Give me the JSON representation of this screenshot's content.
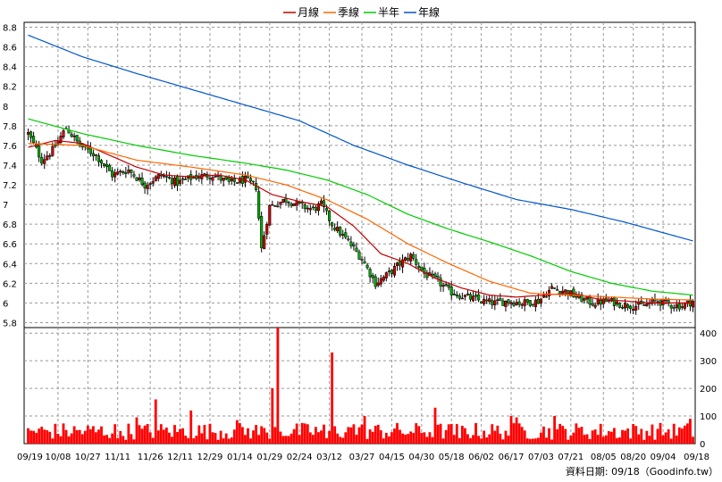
{
  "chart_data": {
    "type": "candlestick",
    "legend": [
      {
        "name": "月線",
        "color": "#c00000"
      },
      {
        "name": "季線",
        "color": "#ff6600"
      },
      {
        "name": "半年",
        "color": "#00cc00"
      },
      {
        "name": "年線",
        "color": "#0055cc"
      }
    ],
    "price_axis": {
      "ylim": [
        5.75,
        8.85
      ],
      "ticks": [
        "5.8",
        "6",
        "6.2",
        "6.4",
        "6.6",
        "6.8",
        "7",
        "7.2",
        "7.4",
        "7.6",
        "7.8",
        "8",
        "8.2",
        "8.4",
        "8.6",
        "8.8"
      ],
      "tick_values": [
        5.8,
        6.0,
        6.2,
        6.4,
        6.6,
        6.8,
        7.0,
        7.2,
        7.4,
        7.6,
        7.8,
        8.0,
        8.2,
        8.4,
        8.6,
        8.8
      ]
    },
    "volume_axis": {
      "ylim": [
        0,
        420
      ],
      "ticks": [
        "0",
        "100",
        "200",
        "300",
        "400"
      ],
      "tick_values": [
        0,
        100,
        200,
        300,
        400
      ]
    },
    "x_tick_labels": [
      "09/19",
      "10/08",
      "10/27",
      "11/11",
      "11/26",
      "12/11",
      "12/29",
      "01/14",
      "01/29",
      "02/24",
      "03/12",
      "03/27",
      "04/15",
      "04/30",
      "05/18",
      "06/02",
      "06/17",
      "07/03",
      "07/21",
      "08/05",
      "08/20",
      "09/04",
      "09/18"
    ],
    "num_bars": 246,
    "close_anchors": [
      [
        0,
        7.72
      ],
      [
        5,
        7.45
      ],
      [
        9,
        7.55
      ],
      [
        14,
        7.78
      ],
      [
        19,
        7.6
      ],
      [
        25,
        7.5
      ],
      [
        31,
        7.3
      ],
      [
        37,
        7.35
      ],
      [
        43,
        7.2
      ],
      [
        49,
        7.3
      ],
      [
        55,
        7.22
      ],
      [
        61,
        7.28
      ],
      [
        68,
        7.3
      ],
      [
        74,
        7.22
      ],
      [
        80,
        7.25
      ],
      [
        84,
        7.18
      ],
      [
        86,
        6.55
      ],
      [
        89,
        6.98
      ],
      [
        95,
        7.05
      ],
      [
        101,
        6.98
      ],
      [
        105,
        6.95
      ],
      [
        108,
        7.0
      ],
      [
        112,
        6.8
      ],
      [
        118,
        6.62
      ],
      [
        123,
        6.45
      ],
      [
        128,
        6.2
      ],
      [
        133,
        6.3
      ],
      [
        137,
        6.4
      ],
      [
        141,
        6.48
      ],
      [
        146,
        6.3
      ],
      [
        151,
        6.22
      ],
      [
        155,
        6.12
      ],
      [
        159,
        6.08
      ],
      [
        163,
        6.05
      ],
      [
        167,
        6.02
      ],
      [
        172,
        6.0
      ],
      [
        177,
        6.02
      ],
      [
        182,
        6.0
      ],
      [
        188,
        6.02
      ],
      [
        193,
        6.15
      ],
      [
        198,
        6.12
      ],
      [
        203,
        6.05
      ],
      [
        208,
        6.0
      ],
      [
        214,
        6.02
      ],
      [
        220,
        5.98
      ],
      [
        226,
        5.97
      ],
      [
        232,
        6.02
      ],
      [
        237,
        5.98
      ],
      [
        241,
        5.97
      ],
      [
        245,
        6.02
      ]
    ],
    "ma_month": [
      [
        0,
        7.58
      ],
      [
        10,
        7.65
      ],
      [
        20,
        7.62
      ],
      [
        30,
        7.5
      ],
      [
        40,
        7.38
      ],
      [
        50,
        7.3
      ],
      [
        60,
        7.28
      ],
      [
        70,
        7.3
      ],
      [
        80,
        7.25
      ],
      [
        90,
        7.1
      ],
      [
        100,
        7.03
      ],
      [
        110,
        6.98
      ],
      [
        120,
        6.78
      ],
      [
        130,
        6.5
      ],
      [
        140,
        6.4
      ],
      [
        150,
        6.25
      ],
      [
        160,
        6.15
      ],
      [
        170,
        6.08
      ],
      [
        180,
        6.06
      ],
      [
        190,
        6.08
      ],
      [
        200,
        6.1
      ],
      [
        210,
        6.04
      ],
      [
        220,
        6.02
      ],
      [
        230,
        6.0
      ],
      [
        245,
        6.0
      ]
    ],
    "ma_quarter": [
      [
        0,
        7.62
      ],
      [
        20,
        7.6
      ],
      [
        40,
        7.45
      ],
      [
        60,
        7.38
      ],
      [
        80,
        7.3
      ],
      [
        95,
        7.2
      ],
      [
        110,
        7.05
      ],
      [
        125,
        6.85
      ],
      [
        140,
        6.6
      ],
      [
        155,
        6.4
      ],
      [
        170,
        6.22
      ],
      [
        185,
        6.1
      ],
      [
        200,
        6.08
      ],
      [
        215,
        6.06
      ],
      [
        230,
        6.04
      ],
      [
        245,
        6.03
      ]
    ],
    "ma_half": [
      [
        0,
        7.87
      ],
      [
        20,
        7.72
      ],
      [
        40,
        7.6
      ],
      [
        60,
        7.5
      ],
      [
        80,
        7.42
      ],
      [
        95,
        7.35
      ],
      [
        110,
        7.25
      ],
      [
        125,
        7.1
      ],
      [
        140,
        6.9
      ],
      [
        155,
        6.75
      ],
      [
        170,
        6.62
      ],
      [
        185,
        6.48
      ],
      [
        200,
        6.32
      ],
      [
        215,
        6.2
      ],
      [
        230,
        6.12
      ],
      [
        245,
        6.08
      ]
    ],
    "ma_year": [
      [
        0,
        8.72
      ],
      [
        20,
        8.5
      ],
      [
        40,
        8.33
      ],
      [
        60,
        8.17
      ],
      [
        80,
        8.01
      ],
      [
        100,
        7.85
      ],
      [
        120,
        7.6
      ],
      [
        140,
        7.4
      ],
      [
        160,
        7.22
      ],
      [
        180,
        7.05
      ],
      [
        200,
        6.95
      ],
      [
        220,
        6.82
      ],
      [
        245,
        6.63
      ]
    ],
    "volume_spikes": [
      [
        33,
        20
      ],
      [
        40,
        95
      ],
      [
        47,
        160
      ],
      [
        60,
        120
      ],
      [
        77,
        85
      ],
      [
        88,
        40
      ],
      [
        90,
        200
      ],
      [
        91,
        60
      ],
      [
        92,
        420
      ],
      [
        110,
        20
      ],
      [
        112,
        330
      ],
      [
        118,
        60
      ],
      [
        120,
        70
      ],
      [
        124,
        100
      ],
      [
        140,
        35
      ],
      [
        150,
        130
      ],
      [
        159,
        20
      ],
      [
        178,
        100
      ],
      [
        180,
        95
      ],
      [
        194,
        100
      ],
      [
        244,
        90
      ]
    ],
    "volume_base": 45,
    "footer": "資料日期: 09/18（Goodinfo.tw）"
  }
}
